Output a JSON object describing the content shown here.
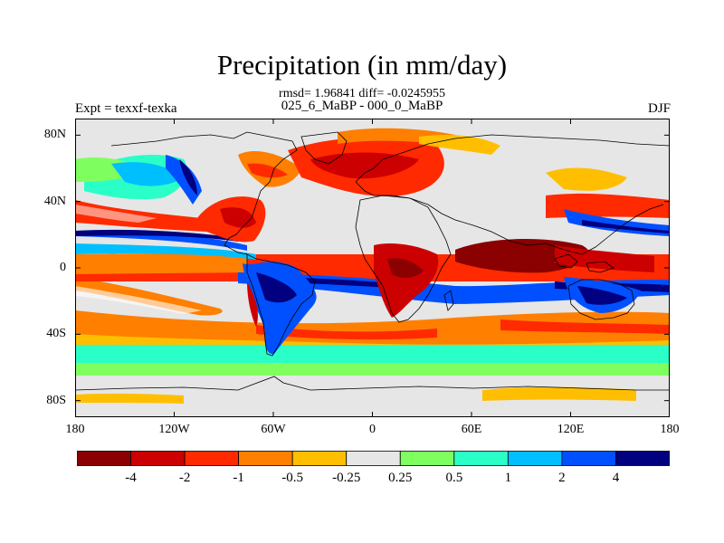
{
  "header": {
    "title": "Precipitation (in mm/day)",
    "stats": "rmsd= 1.96841 diff= -0.0245955",
    "subtitle": "025_6_MaBP - 000_0_MaBP",
    "left_label": "Expt = texxf-texka",
    "right_label": "DJF"
  },
  "map": {
    "projection": "cylindrical-equidistant",
    "lon_range": [
      -180,
      180
    ],
    "lat_range": [
      -90,
      90
    ],
    "lat_ticks": [
      {
        "value": 80,
        "label": "80N"
      },
      {
        "value": 40,
        "label": "40N"
      },
      {
        "value": 0,
        "label": "0"
      },
      {
        "value": -40,
        "label": "40S"
      },
      {
        "value": -80,
        "label": "80S"
      }
    ],
    "lon_ticks": [
      {
        "value": -180,
        "label": "180"
      },
      {
        "value": -120,
        "label": "120W"
      },
      {
        "value": -60,
        "label": "60W"
      },
      {
        "value": 0,
        "label": "0"
      },
      {
        "value": 60,
        "label": "60E"
      },
      {
        "value": 120,
        "label": "120E"
      },
      {
        "value": 180,
        "label": "180"
      }
    ]
  },
  "colorbar": {
    "colors": [
      "#8b0000",
      "#cc0000",
      "#ff2a00",
      "#ff7f00",
      "#ffbf00",
      "#e6e6e6",
      "#7fff5f",
      "#2affc8",
      "#00bfff",
      "#0050ff",
      "#000080"
    ],
    "labels": [
      "-4",
      "-2",
      "-1",
      "-0.5",
      "-0.25",
      "0.25",
      "0.5",
      "1",
      "2",
      "4"
    ]
  }
}
